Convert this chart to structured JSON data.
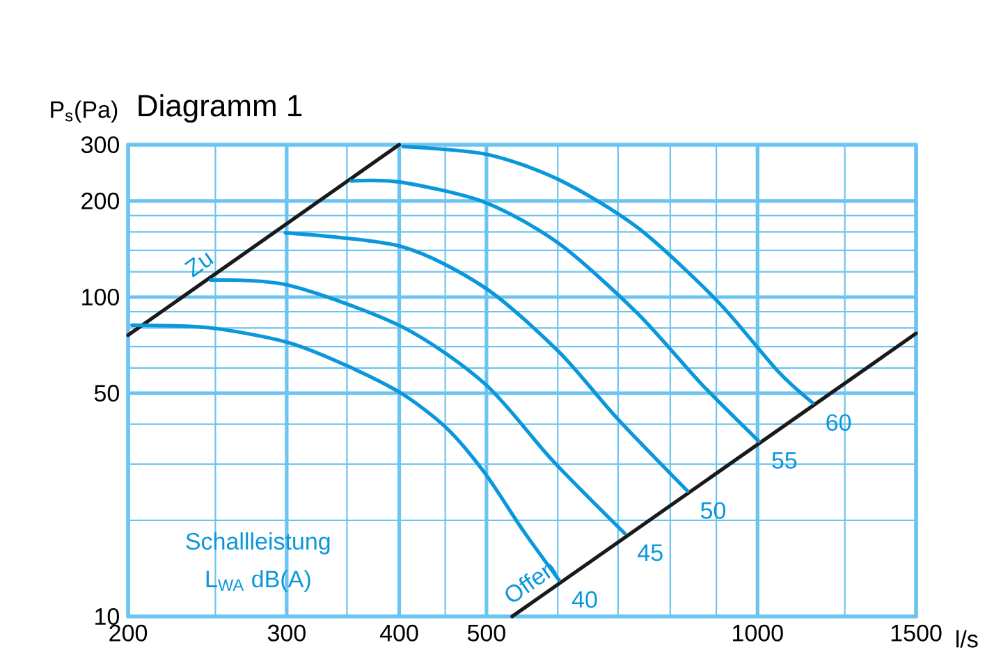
{
  "chart_data": {
    "type": "line",
    "title": "Diagramm 1",
    "ylabel": "P$_{s}$(Pa)",
    "xlabel": "l/s",
    "log": "xy",
    "grid": true,
    "xlim": [
      200,
      1500
    ],
    "ylim": [
      10,
      300
    ],
    "xticks": [
      200,
      {
        "value": 250,
        "label": null
      },
      300,
      {
        "value": 350,
        "label": null
      },
      400,
      {
        "value": 450,
        "label": null
      },
      500,
      {
        "value": 600,
        "label": null
      },
      {
        "value": 700,
        "label": null
      },
      {
        "value": 800,
        "label": null
      },
      {
        "value": 900,
        "label": null
      },
      1000,
      {
        "value": 1250,
        "label": null
      },
      1500
    ],
    "yticks": [
      10,
      {
        "value": 20,
        "label": null
      },
      {
        "value": 30,
        "label": null
      },
      {
        "value": 40,
        "label": null
      },
      50,
      {
        "value": 60,
        "label": null
      },
      {
        "value": 70,
        "label": null
      },
      {
        "value": 80,
        "label": null
      },
      {
        "value": 90,
        "label": null
      },
      100,
      {
        "value": 120,
        "label": null
      },
      {
        "value": 140,
        "label": null
      },
      {
        "value": 160,
        "label": null
      },
      {
        "value": 180,
        "label": null
      },
      200,
      300
    ],
    "series": [
      {
        "name": "Zu",
        "color": "#1a1a1a",
        "x": [
          200,
          400
        ],
        "values": [
          76,
          300
        ]
      },
      {
        "name": "Offen",
        "color": "#1a1a1a",
        "x": [
          534,
          1500
        ],
        "values": [
          10,
          77
        ]
      },
      {
        "name": "40",
        "color": "#0b97dc",
        "x": [
          202,
          247,
          301,
          348,
          402,
          452,
          498,
          549,
          602
        ],
        "values": [
          81.7,
          80.1,
          72.1,
          61.4,
          50,
          38.8,
          28.1,
          18.6,
          13.0
        ]
      },
      {
        "name": "45",
        "color": "#0b97dc",
        "x": [
          247,
          301,
          402,
          498,
          592,
          712
        ],
        "values": [
          113,
          109,
          81,
          53.5,
          30.8,
          18.2
        ]
      },
      {
        "name": "50",
        "color": "#0b97dc",
        "x": [
          299,
          402,
          498,
          602,
          699,
          836
        ],
        "values": [
          159,
          144,
          107,
          67.3,
          41.6,
          24.7
        ]
      },
      {
        "name": "55",
        "color": "#0b97dc",
        "x": [
          354,
          402,
          498,
          602,
          736,
          866,
          1003
        ],
        "values": [
          231,
          229,
          198,
          147,
          88.8,
          53.5,
          35.4
        ]
      },
      {
        "name": "60",
        "color": "#0b97dc",
        "x": [
          404,
          500,
          602,
          736,
          902,
          1053,
          1152
        ],
        "values": [
          296,
          280,
          233,
          165,
          97.3,
          58.7,
          46.6
        ]
      }
    ],
    "annotations": [
      "Schallleistung",
      "L$_{WA}$ dB(A)"
    ]
  }
}
